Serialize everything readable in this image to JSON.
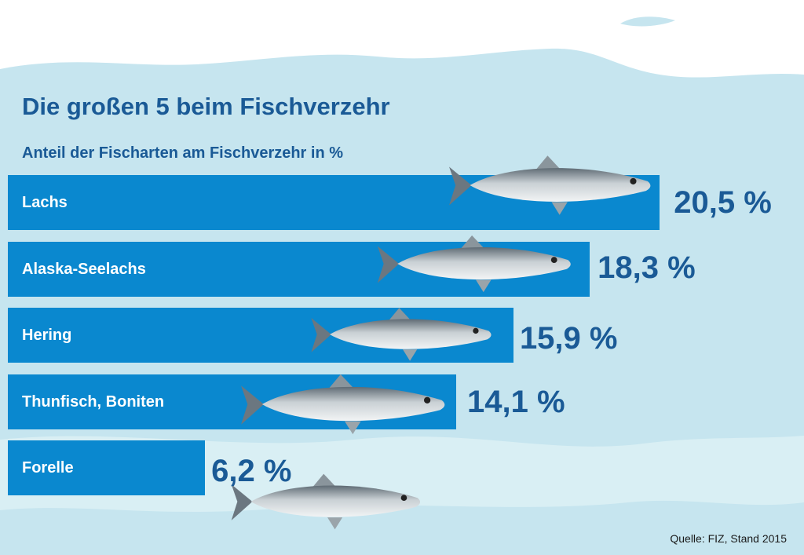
{
  "chart_data": {
    "type": "bar",
    "orientation": "horizontal",
    "title": "Die großen 5 beim Fischverzehr",
    "subtitle": "Anteil der Fischarten am Fischverzehr in %",
    "categories": [
      "Lachs",
      "Alaska-Seelachs",
      "Hering",
      "Thunfisch, Boniten",
      "Forelle"
    ],
    "values": [
      20.5,
      18.3,
      15.9,
      14.1,
      6.2
    ],
    "value_labels": [
      "20,5 %",
      "18,3 %",
      "15,9 %",
      "14,1 %",
      "6,2 %"
    ],
    "unit": "%",
    "grid": false,
    "source": "Quelle: FIZ, Stand 2015"
  },
  "colors": {
    "background": "#c6e5ef",
    "bar": "#0a88cf",
    "title": "#1a5a96",
    "bar_text": "#ffffff"
  },
  "icons": [
    "salmon-image",
    "pollock-image",
    "herring-image",
    "tuna-image",
    "trout-image"
  ]
}
